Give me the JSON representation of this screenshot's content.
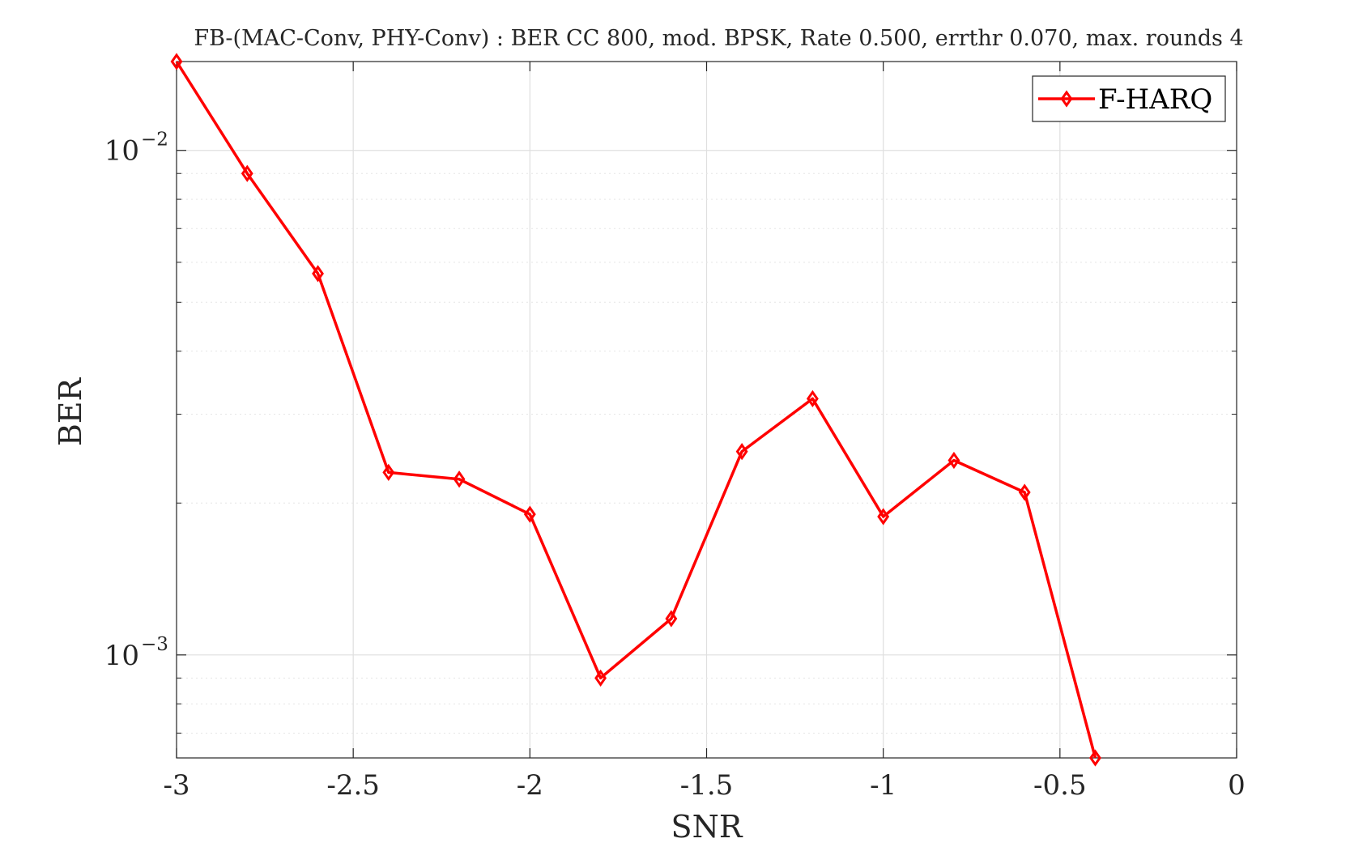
{
  "chart_data": {
    "type": "line",
    "title": "FB-(MAC-Conv, PHY-Conv) : BER CC 800, mod. BPSK, Rate 0.500, errthr 0.070, max. rounds 4",
    "xlabel": "SNR",
    "ylabel": "BER",
    "xlim": [
      -3,
      0
    ],
    "ylim": [
      0.000625,
      0.015
    ],
    "yscale": "log",
    "grid": true,
    "minor_grid": true,
    "legend_position": "top-right",
    "x_ticks": [
      -3,
      -2.5,
      -2,
      -1.5,
      -1,
      -0.5,
      0
    ],
    "x_tick_labels": [
      "-3",
      "-2.5",
      "-2",
      "-1.5",
      "-1",
      "-0.5",
      "0"
    ],
    "y_ticks": [
      {
        "value": 0.01,
        "base": "10",
        "exponent": "−2"
      },
      {
        "value": 0.001,
        "base": "10",
        "exponent": "−3"
      }
    ],
    "series": [
      {
        "name": "F-HARQ",
        "color": "#ff0000",
        "marker": "diamond",
        "x": [
          -3,
          -2.8,
          -2.6,
          -2.4,
          -2.2,
          -2,
          -1.8,
          -1.6,
          -1.4,
          -1.2,
          -1,
          -0.8,
          -0.6,
          -0.4
        ],
        "y": [
          0.015,
          0.009,
          0.0057,
          0.0023,
          0.00223,
          0.0019,
          0.0009,
          0.00118,
          0.00253,
          0.00322,
          0.00188,
          0.00243,
          0.0021,
          0.000625
        ]
      }
    ]
  }
}
